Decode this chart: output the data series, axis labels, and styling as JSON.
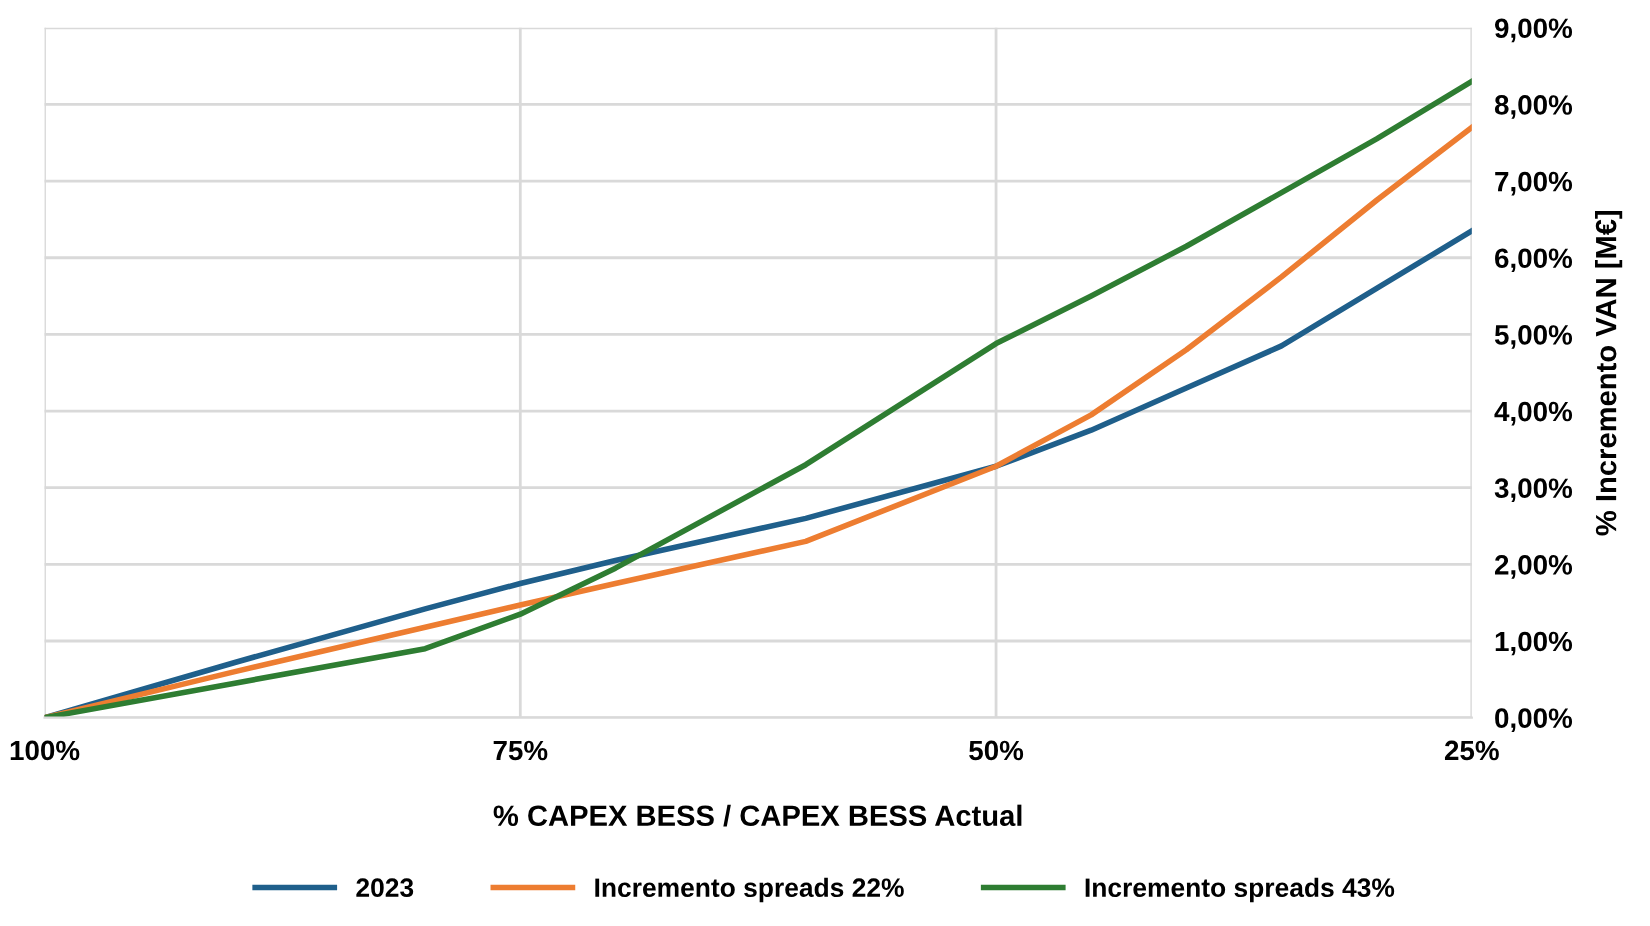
{
  "chart_data": {
    "type": "line",
    "xlabel": "% CAPEX BESS / CAPEX BESS Actual",
    "ylabel": "% Incremento VAN [M€]",
    "x": [
      100,
      90,
      80,
      75,
      70,
      60,
      50,
      45,
      40,
      35,
      30,
      25
    ],
    "series": [
      {
        "name": "2023",
        "color": "#1f5f8b",
        "values": [
          0,
          0.72,
          1.42,
          1.75,
          2.05,
          2.6,
          3.28,
          3.75,
          4.3,
          4.85,
          5.6,
          6.35
        ]
      },
      {
        "name": "Incremento spreads 22%",
        "color": "#ed7d31",
        "values": [
          0,
          0.6,
          1.18,
          1.47,
          1.75,
          2.3,
          3.28,
          3.95,
          4.8,
          5.75,
          6.75,
          7.7
        ]
      },
      {
        "name": "Incremento spreads 43%",
        "color": "#2e7d32",
        "values": [
          0,
          0.45,
          0.9,
          1.35,
          1.95,
          3.3,
          4.88,
          5.5,
          6.15,
          6.85,
          7.55,
          8.3
        ]
      }
    ],
    "xlim": [
      100,
      25
    ],
    "xticks": [
      {
        "value": 100,
        "label": "100%"
      },
      {
        "value": 75,
        "label": "75%"
      },
      {
        "value": 50,
        "label": "50%"
      },
      {
        "value": 25,
        "label": "25%"
      }
    ],
    "ylim": [
      0,
      9
    ],
    "yticks": [
      {
        "value": 0,
        "label": "0,00%"
      },
      {
        "value": 1,
        "label": "1,00%"
      },
      {
        "value": 2,
        "label": "2,00%"
      },
      {
        "value": 3,
        "label": "3,00%"
      },
      {
        "value": 4,
        "label": "4,00%"
      },
      {
        "value": 5,
        "label": "5,00%"
      },
      {
        "value": 6,
        "label": "6,00%"
      },
      {
        "value": 7,
        "label": "7,00%"
      },
      {
        "value": 8,
        "label": "8,00%"
      },
      {
        "value": 9,
        "label": "9,00%"
      }
    ],
    "grid": true,
    "legend": "bottom",
    "marker": "none",
    "line_style": "solid"
  }
}
